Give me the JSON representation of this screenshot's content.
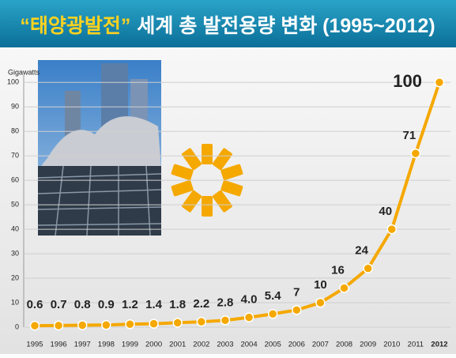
{
  "chart_data": {
    "type": "line",
    "title": [
      "“태양광발전”",
      "세계 총 발전용량 변화 (1995~2012)"
    ],
    "y_label": "Gigawatts",
    "categories": [
      "1995",
      "1996",
      "1997",
      "1998",
      "1999",
      "2000",
      "2001",
      "2002",
      "2003",
      "2004",
      "2005",
      "2006",
      "2007",
      "2008",
      "2009",
      "2010",
      "2011",
      "2012"
    ],
    "series": [
      {
        "color": "#f5a800",
        "values": [
          0.6,
          0.7,
          0.8,
          0.9,
          1.2,
          1.4,
          1.8,
          2.2,
          2.8,
          4.0,
          5.4,
          7,
          10,
          16,
          24,
          40,
          71,
          100
        ],
        "value_labels": [
          "0.6",
          "0.7",
          "0.8",
          "0.9",
          "1.2",
          "1.4",
          "1.8",
          "2.2",
          "2.8",
          "4.0",
          "5.4",
          "7",
          "10",
          "16",
          "24",
          "40",
          "71",
          "100"
        ]
      }
    ],
    "ylim": [
      0,
      103
    ],
    "yticks": [
      0,
      10,
      20,
      30,
      40,
      50,
      60,
      70,
      80,
      90,
      100
    ],
    "grid": true
  }
}
